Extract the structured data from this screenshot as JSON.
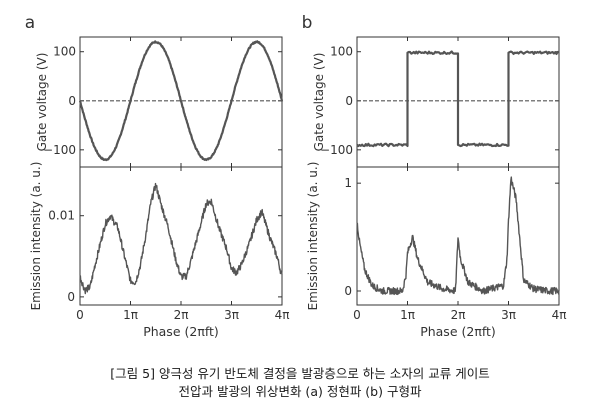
{
  "caption": {
    "line1": "[그림 5] 양극성 유기 반도체 결정을 발광층으로 하는 소자의 교류 게이트",
    "line2": "전압과 발광의 위상변화 (a) 정현파 (b) 구형파"
  },
  "colors": {
    "trace": "#555555",
    "axis": "#333333",
    "dashed": "#555555"
  },
  "chart_data": [
    {
      "panel_label": "a",
      "type": "line",
      "xlabel": "Phase (2πft)",
      "x_ticks": [
        "0",
        "1π",
        "2π",
        "3π",
        "4π"
      ],
      "xlim": [
        0,
        4
      ],
      "top": {
        "ylabel": "Gate voltage (V)",
        "y_ticks": [
          "100",
          "0",
          "−100"
        ],
        "ylim": [
          -135,
          130
        ],
        "waveform": "sine",
        "amplitude": 120,
        "x": [
          0,
          0.5,
          1,
          1.5,
          2,
          2.5,
          3,
          3.5,
          4
        ],
        "values": [
          0,
          -120,
          0,
          120,
          0,
          -120,
          0,
          120,
          0
        ],
        "reference_line": 0
      },
      "bottom": {
        "ylabel": "Emission intensity (a. u.)",
        "y_ticks": [
          "0.01",
          "0"
        ],
        "ylim": [
          -0.001,
          0.016
        ],
        "x": [
          0,
          0.1,
          0.2,
          0.3,
          0.5,
          0.6,
          0.75,
          0.9,
          1.0,
          1.1,
          1.2,
          1.3,
          1.4,
          1.5,
          1.6,
          1.75,
          1.9,
          2.0,
          2.1,
          2.2,
          2.35,
          2.5,
          2.6,
          2.75,
          2.9,
          3.0,
          3.1,
          3.2,
          3.35,
          3.5,
          3.6,
          3.75,
          3.9,
          4.0
        ],
        "values": [
          0.0025,
          0.0008,
          0.0012,
          0.004,
          0.009,
          0.01,
          0.0085,
          0.0045,
          0.002,
          0.0018,
          0.004,
          0.0075,
          0.0115,
          0.0138,
          0.0115,
          0.0085,
          0.0045,
          0.0025,
          0.0025,
          0.0045,
          0.008,
          0.0115,
          0.0118,
          0.0085,
          0.006,
          0.0035,
          0.003,
          0.004,
          0.0065,
          0.0095,
          0.0105,
          0.0075,
          0.005,
          0.0025
        ]
      }
    },
    {
      "panel_label": "b",
      "type": "line",
      "xlabel": "Phase (2πft)",
      "x_ticks": [
        "0",
        "1π",
        "2π",
        "3π",
        "4π"
      ],
      "xlim": [
        0,
        4
      ],
      "top": {
        "ylabel": "Gate voltage (V)",
        "y_ticks": [
          "100",
          "0",
          "−100"
        ],
        "ylim": [
          -135,
          130
        ],
        "waveform": "square",
        "x": [
          0,
          1,
          1,
          2,
          2,
          3,
          3,
          4
        ],
        "values": [
          -90,
          -90,
          98,
          98,
          -90,
          -90,
          98,
          98
        ],
        "reference_line": 0
      },
      "bottom": {
        "ylabel": "Emission intensity (a. u.)",
        "y_ticks": [
          "1",
          "0"
        ],
        "ylim": [
          -0.13,
          1.15
        ],
        "x": [
          0,
          0.05,
          0.15,
          0.3,
          0.5,
          0.9,
          0.97,
          1.0,
          1.1,
          1.2,
          1.4,
          1.7,
          1.95,
          2.0,
          2.05,
          2.2,
          2.5,
          2.9,
          2.97,
          3.0,
          3.05,
          3.15,
          3.3,
          3.5,
          3.8,
          4.0
        ],
        "values": [
          0.65,
          0.45,
          0.2,
          0.05,
          0.0,
          0.0,
          0.15,
          0.35,
          0.5,
          0.3,
          0.08,
          0.02,
          0.0,
          0.5,
          0.3,
          0.08,
          0.0,
          0.05,
          0.3,
          0.65,
          1.05,
          0.85,
          0.1,
          0.02,
          0.0,
          0.0
        ]
      }
    }
  ]
}
